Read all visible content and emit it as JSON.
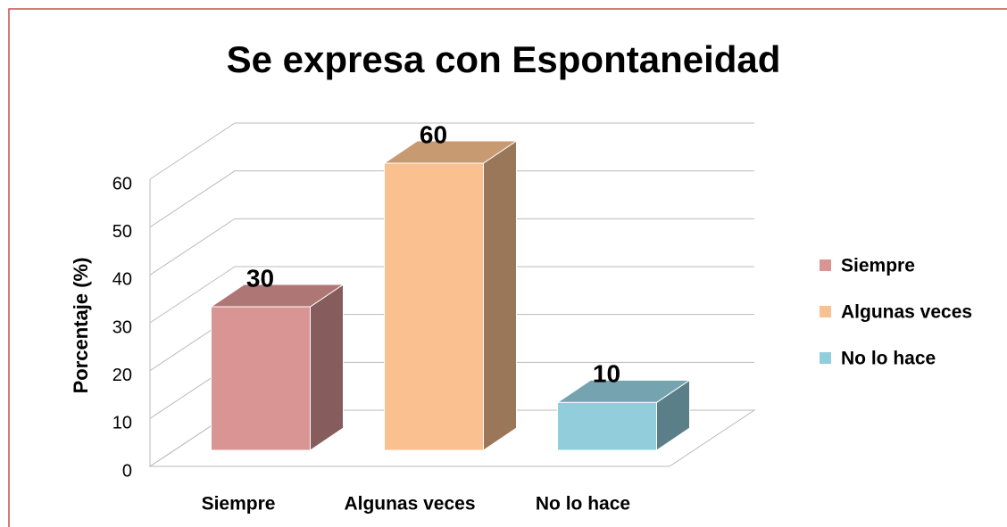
{
  "chart_data": {
    "type": "bar3d",
    "title": "Se expresa con Espontaneidad",
    "y_label": "Porcentaje (%)",
    "categories": [
      "Siempre",
      "Algunas veces",
      "No lo hace"
    ],
    "values": [
      30,
      60,
      10
    ],
    "colors": [
      "#d99594",
      "#fac08f",
      "#92cddc"
    ],
    "ylim": [
      0,
      60
    ],
    "yticks": [
      0,
      10,
      20,
      30,
      40,
      50,
      60
    ],
    "grid": true,
    "legend": "right"
  }
}
